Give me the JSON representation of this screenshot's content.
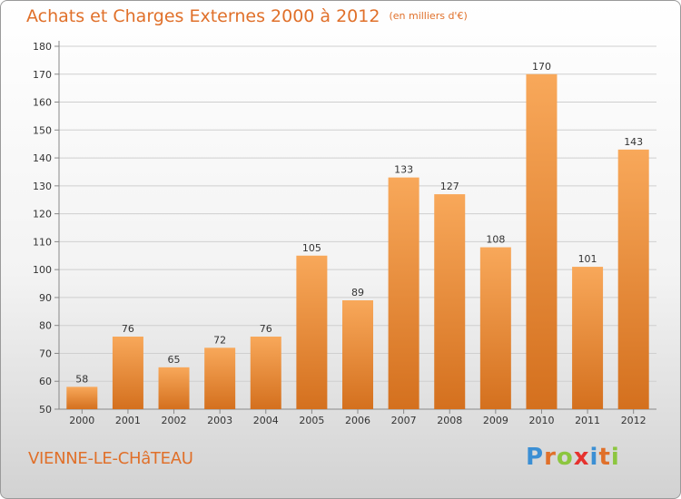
{
  "title": "Achats et Charges Externes 2000 à 2012",
  "subtitle": "(en milliers d'€)",
  "commune": "VIENNE-LE-CHâTEAU",
  "brand": {
    "letters": [
      "P",
      "r",
      "o",
      "x",
      "i",
      "t",
      "i"
    ],
    "colors": [
      "#3b8fd4",
      "#e0702a",
      "#8cc63f",
      "#e6322e",
      "#3b8fd4",
      "#e0702a",
      "#8cc63f"
    ]
  },
  "colors": {
    "accent": "#e0702a",
    "bar_top": "#f8a85a",
    "bar_bottom": "#d4701e",
    "grid": "#cfcfcf",
    "axis_text": "#333333"
  },
  "chart_data": {
    "type": "bar",
    "categories": [
      "2000",
      "2001",
      "2002",
      "2003",
      "2004",
      "2005",
      "2006",
      "2007",
      "2008",
      "2009",
      "2010",
      "2011",
      "2012"
    ],
    "values": [
      58,
      76,
      65,
      72,
      76,
      105,
      89,
      133,
      127,
      108,
      170,
      101,
      143
    ],
    "title": "Achats et Charges Externes 2000 à 2012",
    "subtitle": "(en milliers d'€)",
    "xlabel": "",
    "ylabel": "",
    "ylim": [
      50,
      180
    ],
    "yticks": [
      50,
      60,
      70,
      80,
      90,
      100,
      110,
      120,
      130,
      140,
      150,
      160,
      170,
      180
    ],
    "grid": true,
    "data_labels": true
  }
}
